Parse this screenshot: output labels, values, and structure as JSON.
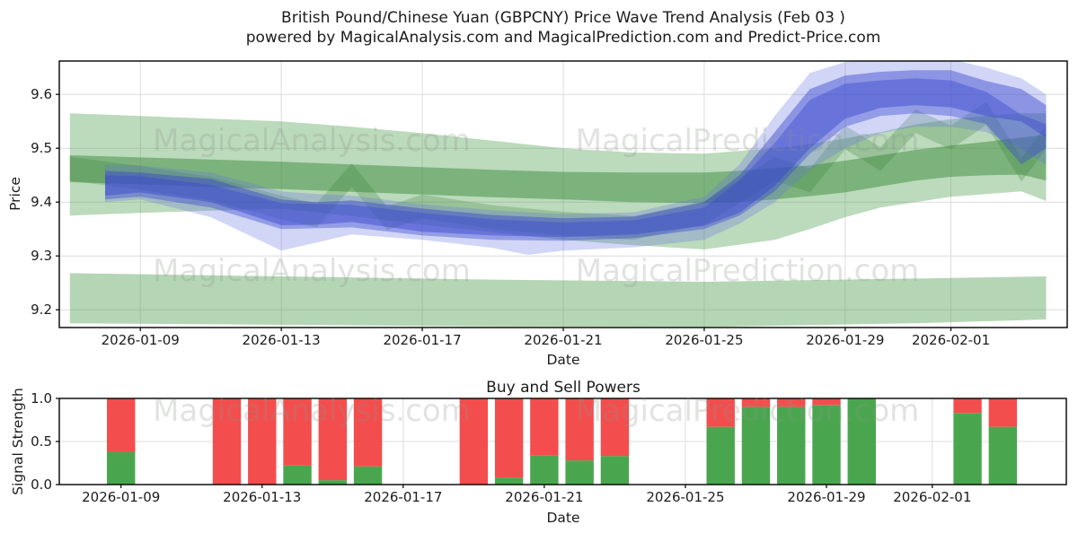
{
  "title": {
    "line1": "British Pound/Chinese Yuan (GBPCNY) Price Wave Trend Analysis (Feb 03 )",
    "line2": "powered by MagicalAnalysis.com and MagicalPrediction.com and Predict-Price.com"
  },
  "watermarks": {
    "left": "MagicalAnalysis.com",
    "right": "MagicalPrediction.com"
  },
  "colors": {
    "buy": "#4aa64e",
    "sell": "#f44d4d",
    "green_light": "#4f9d4f",
    "green_dark": "#3c8c3c",
    "green_wave": "#2f7d31",
    "blue_light": "#6674e0",
    "blue_dark": "#3845cf",
    "grid": "#dcdcdc",
    "spine": "#000000"
  },
  "chart_data": [
    {
      "type": "area",
      "ylabel": "Price",
      "xlabel": "Date",
      "date_origin": "2026-01-07",
      "ylim": [
        9.167,
        9.662
      ],
      "xlim_days": [
        -0.3,
        28.3
      ],
      "y_ticks": [
        9.2,
        9.3,
        9.4,
        9.5,
        9.6
      ],
      "x_ticks": [
        {
          "offset": 2,
          "label": "2026-01-09"
        },
        {
          "offset": 6,
          "label": "2026-01-13"
        },
        {
          "offset": 10,
          "label": "2026-01-17"
        },
        {
          "offset": 14,
          "label": "2026-01-21"
        },
        {
          "offset": 18,
          "label": "2026-01-25"
        },
        {
          "offset": 22,
          "label": "2026-01-29"
        },
        {
          "offset": 25,
          "label": "2026-02-01"
        }
      ],
      "grid": true,
      "bands": [
        {
          "name": "support-zone",
          "color_key": "green_light",
          "opacity": 0.42,
          "x": [
            0,
            6,
            12,
            18,
            24,
            27.7
          ],
          "upper": [
            9.268,
            9.262,
            9.256,
            9.252,
            9.258,
            9.262
          ],
          "lower": [
            9.175,
            9.172,
            9.169,
            9.168,
            9.175,
            9.182
          ]
        },
        {
          "name": "trend-range-outer",
          "color_key": "green_light",
          "opacity": 0.38,
          "x": [
            0,
            2,
            4,
            6,
            8,
            10,
            12,
            14,
            16,
            18,
            20,
            21,
            22,
            23,
            24,
            25,
            26,
            27,
            27.7
          ],
          "upper": [
            9.565,
            9.56,
            9.555,
            9.55,
            9.54,
            9.528,
            9.514,
            9.5,
            9.492,
            9.49,
            9.5,
            9.508,
            9.518,
            9.53,
            9.544,
            9.554,
            9.56,
            9.565,
            9.565
          ],
          "lower": [
            9.375,
            9.38,
            9.384,
            9.388,
            9.374,
            9.358,
            9.344,
            9.33,
            9.32,
            9.312,
            9.33,
            9.35,
            9.372,
            9.39,
            9.4,
            9.41,
            9.415,
            9.42,
            9.402
          ]
        },
        {
          "name": "trend-range-inner",
          "color_key": "green_dark",
          "opacity": 0.5,
          "x": [
            0,
            2,
            4,
            6,
            8,
            10,
            12,
            14,
            16,
            18,
            19,
            20,
            21,
            22,
            23,
            24,
            25,
            26,
            27,
            27.7
          ],
          "upper": [
            9.487,
            9.483,
            9.479,
            9.475,
            9.47,
            9.465,
            9.46,
            9.456,
            9.455,
            9.455,
            9.458,
            9.463,
            9.468,
            9.477,
            9.487,
            9.497,
            9.505,
            9.512,
            9.52,
            9.525
          ],
          "lower": [
            9.437,
            9.433,
            9.428,
            9.424,
            9.419,
            9.414,
            9.409,
            9.405,
            9.4,
            9.398,
            9.4,
            9.405,
            9.411,
            9.418,
            9.429,
            9.44,
            9.447,
            9.45,
            9.451,
            9.44
          ]
        },
        {
          "name": "wave-band",
          "color_key": "green_wave",
          "opacity": 0.25,
          "x": [
            0,
            2,
            4,
            6,
            7,
            8,
            9,
            10,
            12,
            14,
            16,
            18,
            19,
            20,
            21,
            22,
            23,
            24,
            25,
            26,
            27,
            27.7
          ],
          "upper": [
            9.484,
            9.467,
            9.447,
            9.412,
            9.397,
            9.472,
            9.392,
            9.414,
            9.394,
            9.382,
            9.374,
            9.402,
            9.442,
            9.484,
            9.462,
            9.542,
            9.502,
            9.572,
            9.542,
            9.587,
            9.482,
            9.542
          ],
          "lower": [
            9.44,
            9.423,
            9.403,
            9.368,
            9.353,
            9.428,
            9.348,
            9.37,
            9.35,
            9.338,
            9.33,
            9.358,
            9.398,
            9.44,
            9.418,
            9.498,
            9.458,
            9.528,
            9.498,
            9.543,
            9.438,
            9.498
          ]
        },
        {
          "name": "prediction-range",
          "color_key": "blue_light",
          "opacity": 0.3,
          "x": [
            1,
            2,
            4,
            6,
            7,
            8,
            10,
            12,
            13,
            14,
            16,
            18,
            19,
            20,
            21,
            22,
            23,
            24,
            25,
            26,
            27,
            27.7
          ],
          "upper": [
            9.47,
            9.468,
            9.455,
            9.42,
            9.415,
            9.412,
            9.396,
            9.385,
            9.381,
            9.378,
            9.381,
            9.41,
            9.47,
            9.56,
            9.64,
            9.66,
            9.666,
            9.67,
            9.665,
            9.65,
            9.63,
            9.6
          ],
          "lower": [
            9.4,
            9.405,
            9.372,
            9.31,
            9.325,
            9.34,
            9.33,
            9.315,
            9.302,
            9.31,
            9.316,
            9.33,
            9.36,
            9.4,
            9.46,
            9.5,
            9.528,
            9.54,
            9.54,
            9.53,
            9.5,
            9.468
          ]
        },
        {
          "name": "prediction-core-b",
          "color_key": "blue_dark",
          "opacity": 0.4,
          "x": [
            1,
            2,
            4,
            6,
            8,
            10,
            12,
            14,
            16,
            18,
            19,
            20,
            21,
            22,
            23,
            24,
            25,
            26,
            27,
            27.7
          ],
          "upper": [
            9.45,
            9.448,
            9.432,
            9.398,
            9.395,
            9.38,
            9.368,
            9.362,
            9.366,
            9.39,
            9.44,
            9.51,
            9.59,
            9.62,
            9.626,
            9.63,
            9.626,
            9.605,
            9.562,
            9.545
          ],
          "lower": [
            9.405,
            9.41,
            9.39,
            9.35,
            9.353,
            9.338,
            9.33,
            9.328,
            9.333,
            9.35,
            9.375,
            9.42,
            9.49,
            9.54,
            9.56,
            9.565,
            9.56,
            9.545,
            9.47,
            9.5
          ]
        },
        {
          "name": "prediction-core-a",
          "color_key": "blue_dark",
          "opacity": 0.45,
          "x": [
            1,
            2,
            4,
            6,
            7,
            8,
            10,
            12,
            14,
            16,
            18,
            19,
            20,
            21,
            22,
            23,
            24,
            25,
            26,
            27,
            27.7
          ],
          "upper": [
            9.458,
            9.455,
            9.443,
            9.405,
            9.4,
            9.403,
            9.388,
            9.376,
            9.37,
            9.373,
            9.4,
            9.45,
            9.53,
            9.61,
            9.635,
            9.642,
            9.645,
            9.645,
            9.625,
            9.61,
            9.58
          ],
          "lower": [
            9.412,
            9.418,
            9.4,
            9.357,
            9.358,
            9.363,
            9.345,
            9.338,
            9.335,
            9.34,
            9.356,
            9.38,
            9.43,
            9.5,
            9.555,
            9.575,
            9.58,
            9.576,
            9.56,
            9.55,
            9.52
          ]
        }
      ]
    },
    {
      "type": "stacked_bar",
      "title": "Buy and Sell Powers",
      "ylabel": "Signal Strength",
      "xlabel": "Date",
      "date_origin": "2026-01-07",
      "ylim": [
        0,
        1
      ],
      "xlim_days": [
        0.25,
        28.8
      ],
      "y_ticks": [
        0.0,
        0.5,
        1.0
      ],
      "x_ticks": [
        {
          "offset": 2,
          "label": "2026-01-09"
        },
        {
          "offset": 6,
          "label": "2026-01-13"
        },
        {
          "offset": 10,
          "label": "2026-01-17"
        },
        {
          "offset": 14,
          "label": "2026-01-21"
        },
        {
          "offset": 18,
          "label": "2026-01-25"
        },
        {
          "offset": 22,
          "label": "2026-01-29"
        },
        {
          "offset": 25,
          "label": "2026-02-01"
        }
      ],
      "grid": true,
      "bar_width_days": 0.8,
      "series_names": {
        "bottom": "Buy",
        "top": "Sell"
      },
      "bars": [
        {
          "date": "2026-01-09",
          "offset": 2,
          "buy": 0.38,
          "sell": 0.62
        },
        {
          "date": "2026-01-12",
          "offset": 5,
          "buy": 0.0,
          "sell": 1.0
        },
        {
          "date": "2026-01-13",
          "offset": 6,
          "buy": 0.0,
          "sell": 1.0
        },
        {
          "date": "2026-01-14",
          "offset": 7,
          "buy": 0.22,
          "sell": 0.78
        },
        {
          "date": "2026-01-15",
          "offset": 8,
          "buy": 0.05,
          "sell": 0.95
        },
        {
          "date": "2026-01-16",
          "offset": 9,
          "buy": 0.21,
          "sell": 0.79
        },
        {
          "date": "2026-01-19",
          "offset": 12,
          "buy": 0.0,
          "sell": 1.0
        },
        {
          "date": "2026-01-20",
          "offset": 13,
          "buy": 0.08,
          "sell": 0.92
        },
        {
          "date": "2026-01-21",
          "offset": 14,
          "buy": 0.34,
          "sell": 0.66
        },
        {
          "date": "2026-01-22",
          "offset": 15,
          "buy": 0.28,
          "sell": 0.72
        },
        {
          "date": "2026-01-23",
          "offset": 16,
          "buy": 0.33,
          "sell": 0.67
        },
        {
          "date": "2026-01-26",
          "offset": 19,
          "buy": 0.67,
          "sell": 0.33
        },
        {
          "date": "2026-01-27",
          "offset": 20,
          "buy": 0.9,
          "sell": 0.1
        },
        {
          "date": "2026-01-28",
          "offset": 21,
          "buy": 0.9,
          "sell": 0.1
        },
        {
          "date": "2026-01-29",
          "offset": 22,
          "buy": 0.92,
          "sell": 0.08
        },
        {
          "date": "2026-01-30",
          "offset": 23,
          "buy": 1.0,
          "sell": 0.0
        },
        {
          "date": "2026-02-02",
          "offset": 26,
          "buy": 0.83,
          "sell": 0.17
        },
        {
          "date": "2026-02-03",
          "offset": 27,
          "buy": 0.67,
          "sell": 0.33
        }
      ]
    }
  ]
}
